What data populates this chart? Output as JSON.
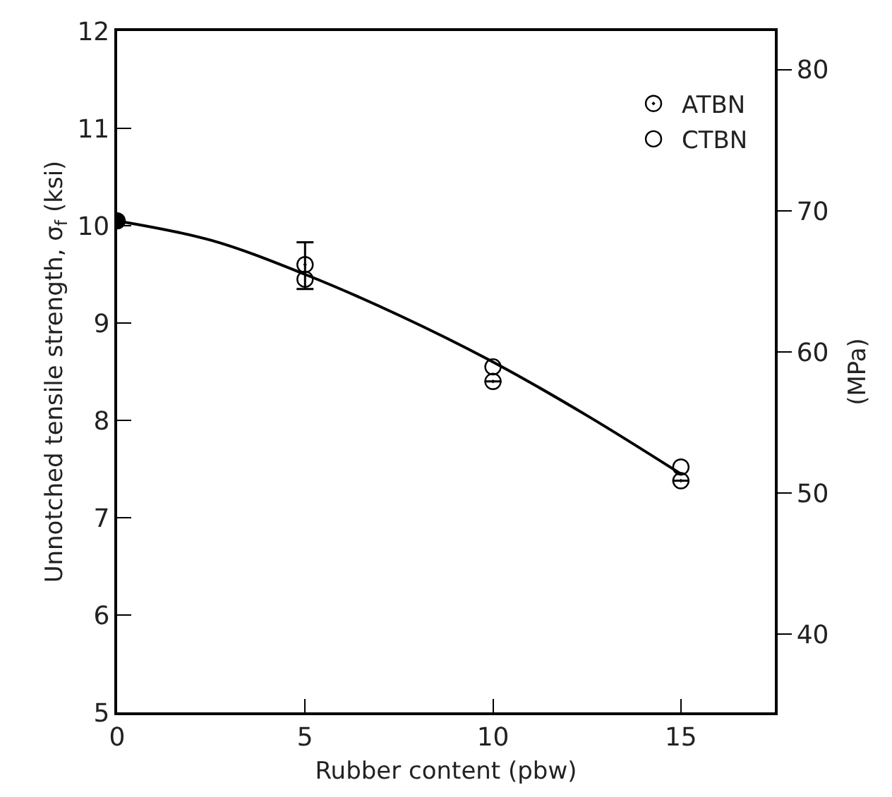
{
  "chart_data": {
    "type": "scatter",
    "xlabel": "Rubber content (pbw)",
    "ylabel": "Unnotched tensile strength, σ$_{f}$ (ksi)",
    "y2label": "(MPa)",
    "xlim": [
      0,
      17.5
    ],
    "xticks": [
      0,
      5,
      10,
      15
    ],
    "ylim": [
      5,
      12
    ],
    "yticks": [
      5,
      6,
      7,
      8,
      9,
      10,
      11,
      12
    ],
    "y2lim": [
      34.47,
      82.74
    ],
    "y2ticks": [
      40,
      50,
      60,
      70,
      80
    ],
    "legend": "top right",
    "series": [
      {
        "type": "line",
        "color": "#000000",
        "x": [
          0,
          2.5,
          5,
          7.5,
          10,
          12.5,
          15
        ],
        "values": [
          10.05,
          9.85,
          9.5,
          9.08,
          8.6,
          8.05,
          7.45
        ],
        "marker": "none",
        "line_style": "solid"
      },
      {
        "color": "#000000",
        "x": [
          0
        ],
        "values": [
          10.05
        ],
        "marker": "circle"
      },
      {
        "name": "ATBN",
        "color": "#000000",
        "x": [
          5,
          10,
          15
        ],
        "values": [
          9.6,
          8.4,
          7.38
        ],
        "errors": [
          [
            9.35,
            9.83
          ],
          null,
          null
        ],
        "marker": "circle-dot"
      },
      {
        "name": "CTBN",
        "color": "#000000",
        "x": [
          5,
          10,
          15
        ],
        "values": [
          9.45,
          8.55,
          7.52
        ],
        "marker": "circle-open"
      }
    ]
  }
}
